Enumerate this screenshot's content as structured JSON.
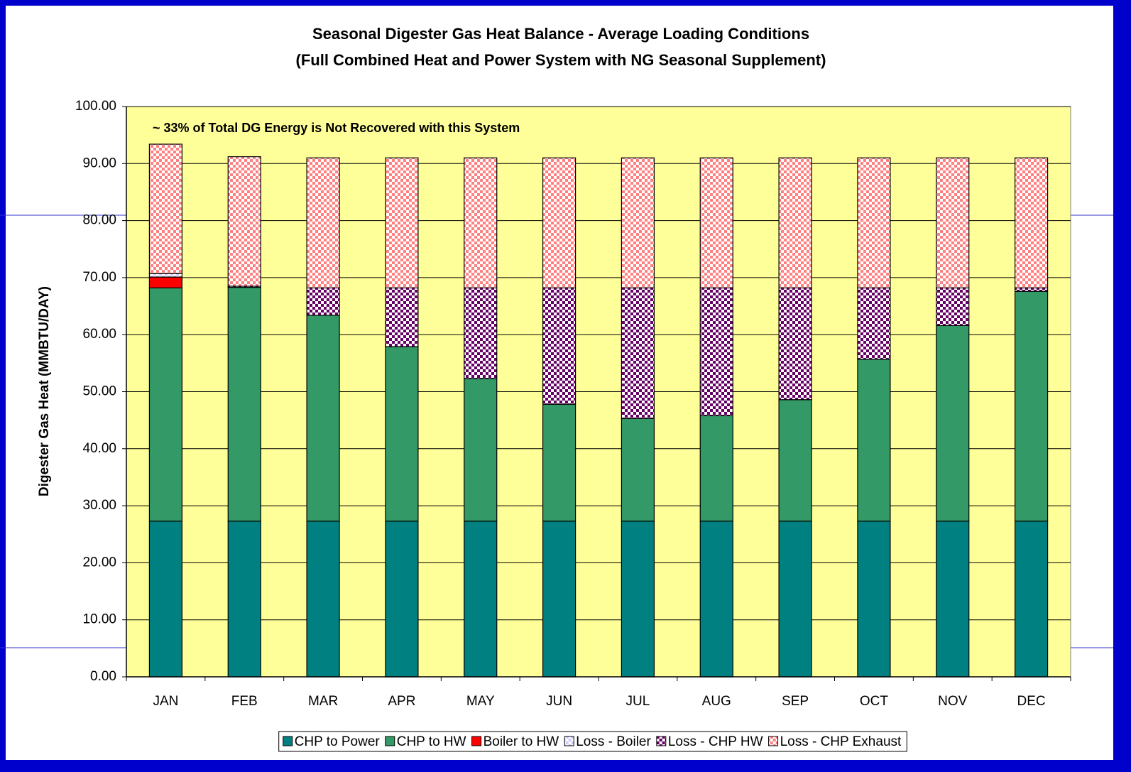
{
  "chart_data": {
    "type": "stacked_bar",
    "title": "Seasonal Digester Gas Heat Balance - Average Loading Conditions",
    "subtitle": "(Full Combined Heat and Power System with NG Seasonal Supplement)",
    "annotation": "~ 33% of Total DG Energy is Not Recovered with this System",
    "y_label": "Digester Gas Heat (MMBTU/DAY)",
    "categories": [
      "JAN",
      "FEB",
      "MAR",
      "APR",
      "MAY",
      "JUN",
      "JUL",
      "AUG",
      "SEP",
      "OCT",
      "NOV",
      "DEC"
    ],
    "series": [
      {
        "name": "CHP to Power",
        "color": "#008080",
        "pattern": false,
        "values": [
          27.3,
          27.3,
          27.3,
          27.3,
          27.3,
          27.3,
          27.3,
          27.3,
          27.3,
          27.3,
          27.3,
          27.3
        ]
      },
      {
        "name": "CHP to HW",
        "color": "#339966",
        "pattern": false,
        "values": [
          40.9,
          41.0,
          36.1,
          30.6,
          25.0,
          20.5,
          18.0,
          18.5,
          21.3,
          28.4,
          34.3,
          40.3
        ]
      },
      {
        "name": "Boiler to HW",
        "color": "#ff0000",
        "pattern": false,
        "values": [
          1.9,
          0,
          0,
          0,
          0,
          0,
          0,
          0,
          0,
          0,
          0,
          0
        ]
      },
      {
        "name": "Loss - Boiler",
        "color": "#ccccff",
        "pattern": true,
        "values": [
          0.6,
          0,
          0,
          0,
          0,
          0,
          0,
          0,
          0,
          0,
          0,
          0
        ]
      },
      {
        "name": "Loss - CHP HW",
        "color": "#660066",
        "pattern": true,
        "values": [
          0,
          0.2,
          4.8,
          10.3,
          15.9,
          20.4,
          22.9,
          22.4,
          19.6,
          12.5,
          6.6,
          0.6
        ]
      },
      {
        "name": "Loss - CHP Exhaust",
        "color": "#ff8080",
        "pattern": true,
        "values": [
          22.7,
          22.7,
          22.8,
          22.8,
          22.8,
          22.8,
          22.8,
          22.8,
          22.8,
          22.8,
          22.8,
          22.8
        ]
      }
    ],
    "ylim": [
      0,
      100
    ],
    "yticks": [
      {
        "value": 0,
        "label": "0.00"
      },
      {
        "value": 10,
        "label": "10.00"
      },
      {
        "value": 20,
        "label": "20.00"
      },
      {
        "value": 30,
        "label": "30.00"
      },
      {
        "value": 40,
        "label": "40.00"
      },
      {
        "value": 50,
        "label": "50.00"
      },
      {
        "value": 60,
        "label": "60.00"
      },
      {
        "value": 70,
        "label": "70.00"
      },
      {
        "value": 80,
        "label": "80.00"
      },
      {
        "value": 90,
        "label": "90.00"
      },
      {
        "value": 100,
        "label": "100.00"
      }
    ],
    "grid": true,
    "plot_background": "#ffff99",
    "legend": "bottom"
  }
}
